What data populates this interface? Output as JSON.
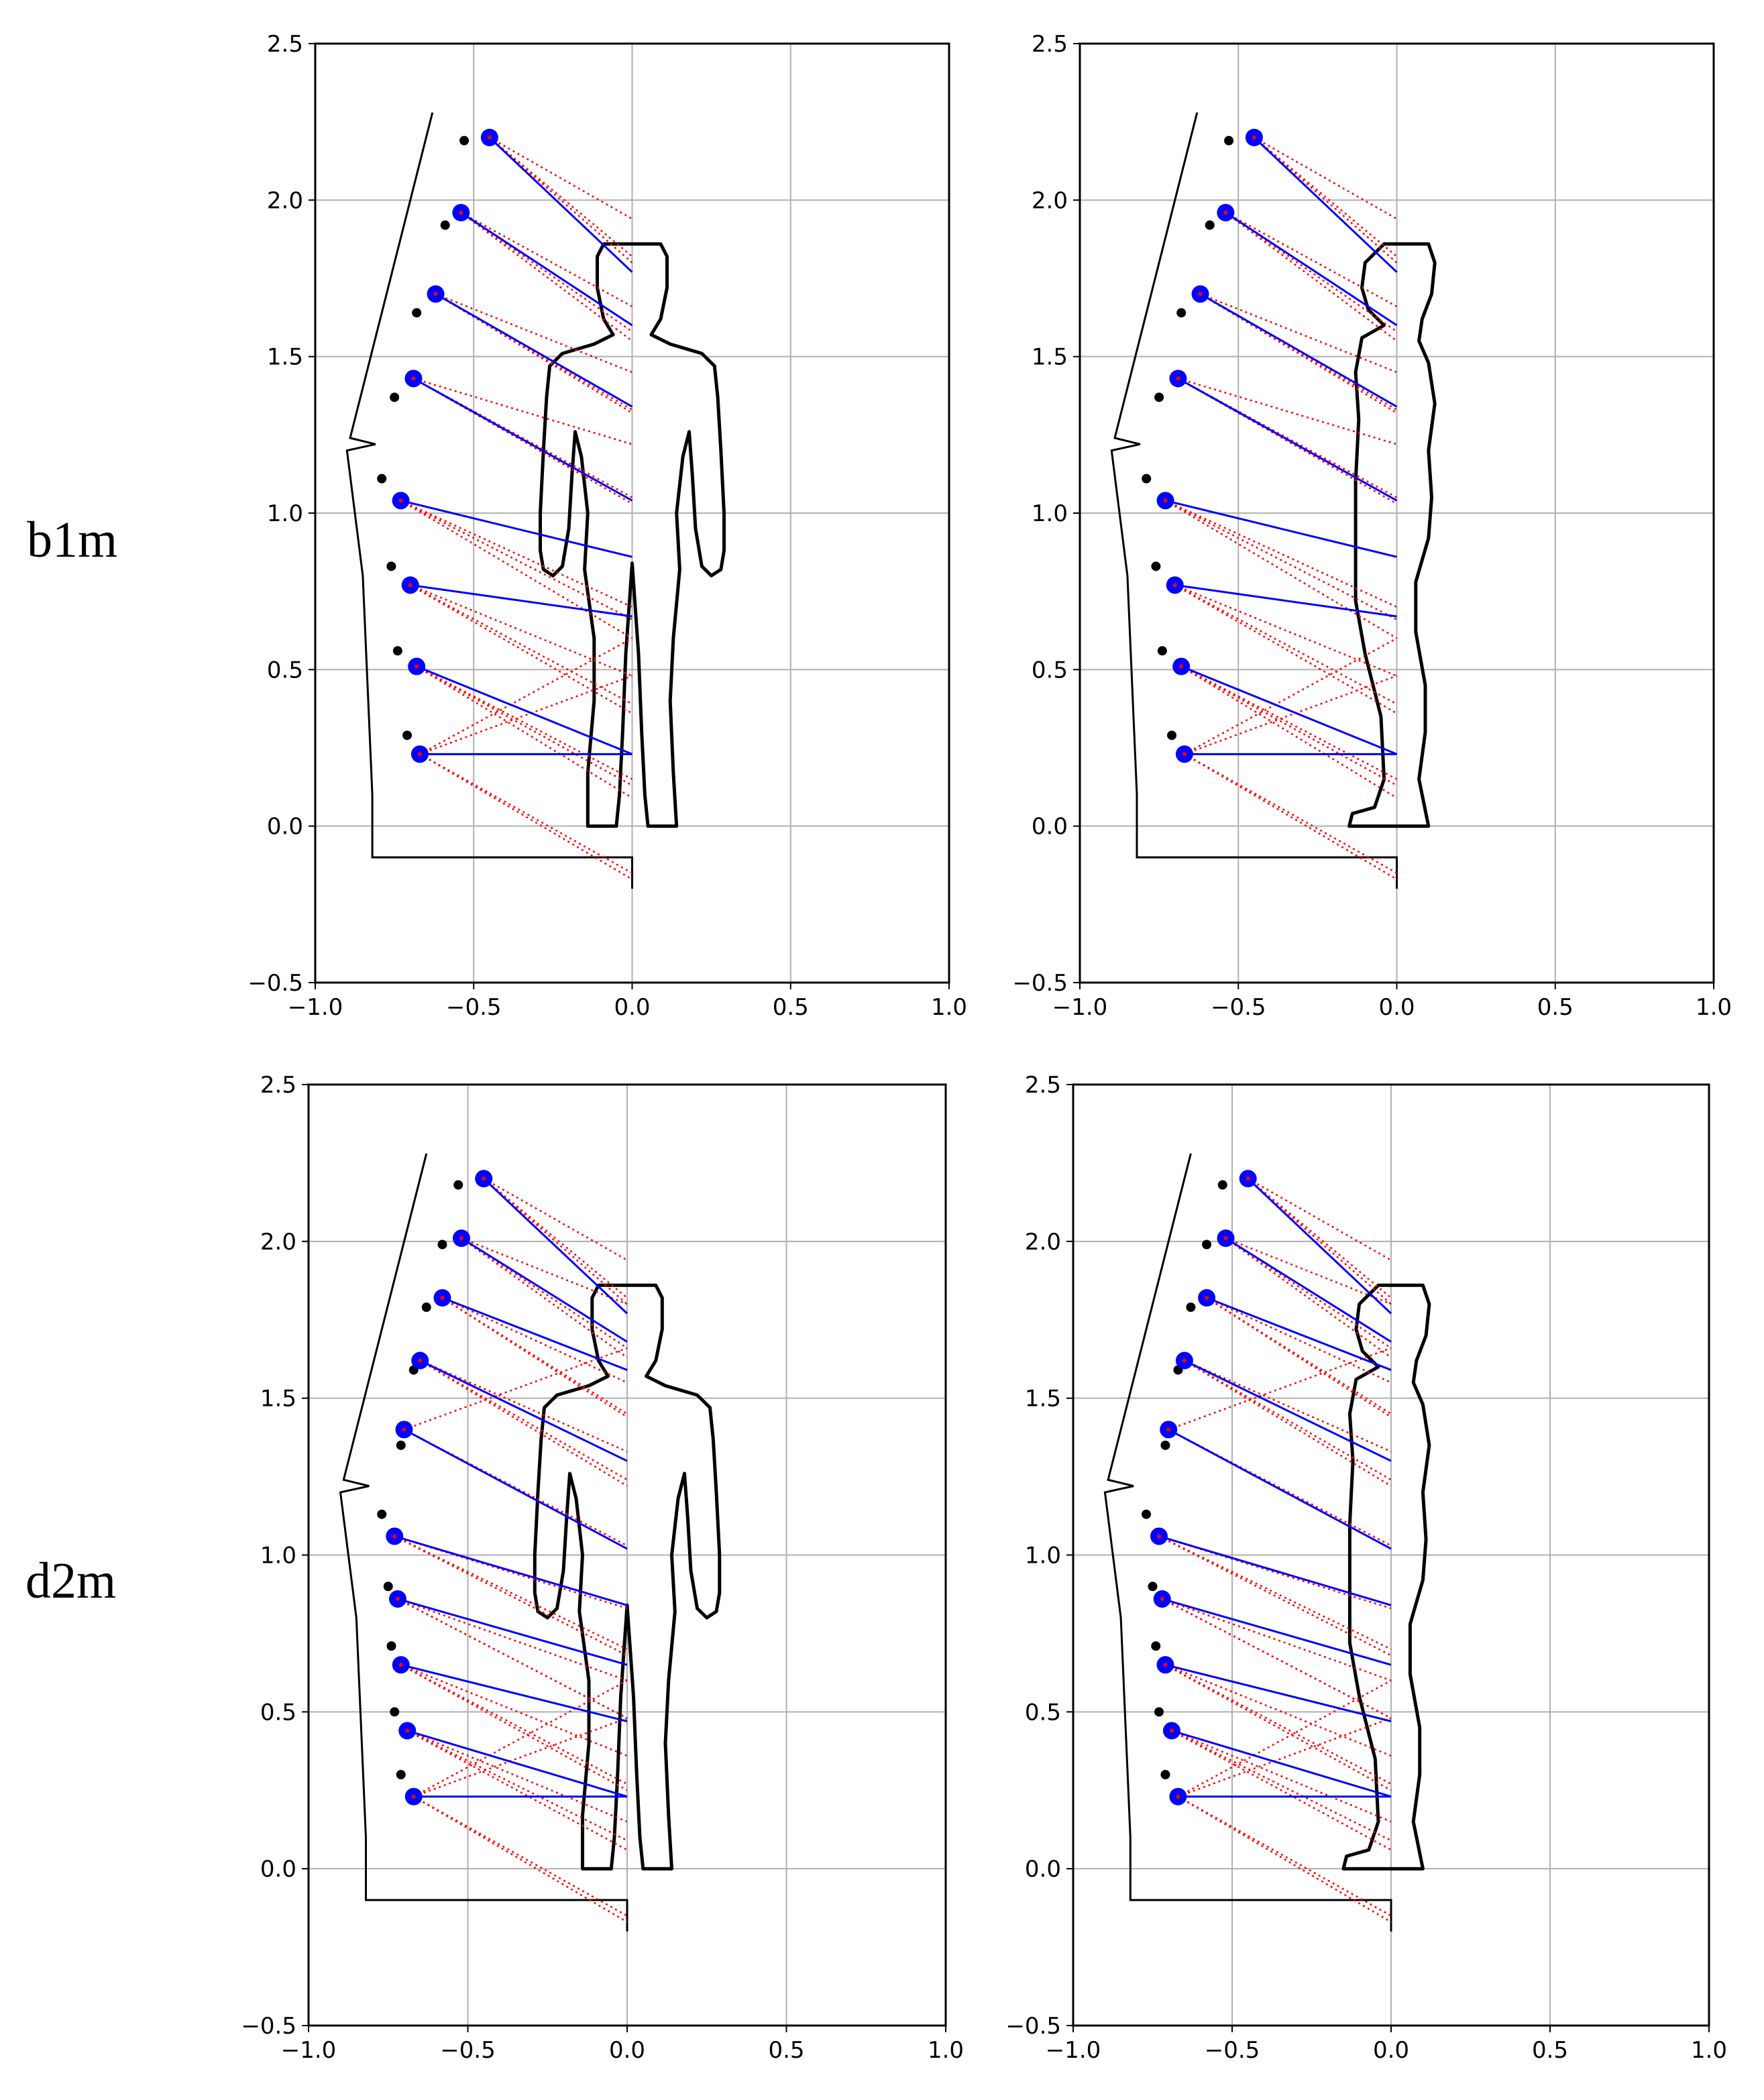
{
  "row_labels": [
    "b1m",
    "d2m"
  ],
  "colors": {
    "sensor_fill": "#0000ff",
    "sensor_center": "#ff0000",
    "los_line": "#0000ff",
    "ray_line": "#ff0000",
    "dot": "#000000",
    "grid": "#b0b0b0",
    "outline": "#000000"
  },
  "chart_data": [
    {
      "type": "scatter",
      "row_label": "b1m",
      "view": "front",
      "xlim": [
        -1.0,
        1.0
      ],
      "ylim": [
        -0.5,
        2.5
      ],
      "xticks": [
        "−1.0",
        "−0.5",
        "0.0",
        "0.5",
        "1.0"
      ],
      "yticks": [
        "−0.5",
        "0.0",
        "0.5",
        "1.0",
        "1.5",
        "2.0",
        "2.5"
      ],
      "grid": true,
      "sensors": [
        [
          -0.45,
          2.2
        ],
        [
          -0.54,
          1.96
        ],
        [
          -0.62,
          1.7
        ],
        [
          -0.69,
          1.43
        ],
        [
          -0.73,
          1.04
        ],
        [
          -0.7,
          0.77
        ],
        [
          -0.68,
          0.51
        ],
        [
          -0.67,
          0.23
        ]
      ],
      "targets_y": [
        1.77,
        1.6,
        1.34,
        1.04,
        0.86,
        0.67,
        0.23
      ],
      "dots": [
        [
          -0.53,
          2.19
        ],
        [
          -0.59,
          1.92
        ],
        [
          -0.68,
          1.64
        ],
        [
          -0.75,
          1.37
        ],
        [
          -0.79,
          1.11
        ],
        [
          -0.76,
          0.83
        ],
        [
          -0.74,
          0.56
        ],
        [
          -0.71,
          0.29
        ]
      ]
    },
    {
      "type": "scatter",
      "row_label": "b1m",
      "view": "side",
      "xlim": [
        -1.0,
        1.0
      ],
      "ylim": [
        -0.5,
        2.5
      ],
      "xticks": [
        "−1.0",
        "−0.5",
        "0.0",
        "0.5",
        "1.0"
      ],
      "yticks": [
        "−0.5",
        "0.0",
        "0.5",
        "1.0",
        "1.5",
        "2.0",
        "2.5"
      ],
      "grid": true,
      "sensors": [
        [
          -0.45,
          2.2
        ],
        [
          -0.54,
          1.96
        ],
        [
          -0.62,
          1.7
        ],
        [
          -0.69,
          1.43
        ],
        [
          -0.73,
          1.04
        ],
        [
          -0.7,
          0.77
        ],
        [
          -0.68,
          0.51
        ],
        [
          -0.67,
          0.23
        ]
      ],
      "targets_y": [
        1.77,
        1.6,
        1.34,
        1.04,
        0.86,
        0.67,
        0.23
      ],
      "dots": [
        [
          -0.53,
          2.19
        ],
        [
          -0.59,
          1.92
        ],
        [
          -0.68,
          1.64
        ],
        [
          -0.75,
          1.37
        ],
        [
          -0.79,
          1.11
        ],
        [
          -0.76,
          0.83
        ],
        [
          -0.74,
          0.56
        ],
        [
          -0.71,
          0.29
        ]
      ]
    },
    {
      "type": "scatter",
      "row_label": "d2m",
      "view": "front",
      "xlim": [
        -1.0,
        1.0
      ],
      "ylim": [
        -0.5,
        2.5
      ],
      "xticks": [
        "−1.0",
        "−0.5",
        "0.0",
        "0.5",
        "1.0"
      ],
      "yticks": [
        "−0.5",
        "0.0",
        "0.5",
        "1.0",
        "1.5",
        "2.0",
        "2.5"
      ],
      "grid": true,
      "sensors": [
        [
          -0.45,
          2.2
        ],
        [
          -0.52,
          2.01
        ],
        [
          -0.58,
          1.82
        ],
        [
          -0.65,
          1.62
        ],
        [
          -0.7,
          1.4
        ],
        [
          -0.73,
          1.06
        ],
        [
          -0.72,
          0.86
        ],
        [
          -0.71,
          0.65
        ],
        [
          -0.69,
          0.44
        ],
        [
          -0.67,
          0.23
        ]
      ],
      "targets_y": [
        1.77,
        1.68,
        1.59,
        1.3,
        1.02,
        0.84,
        0.65,
        0.47,
        0.23
      ],
      "dots": [
        [
          -0.53,
          2.18
        ],
        [
          -0.58,
          1.99
        ],
        [
          -0.63,
          1.79
        ],
        [
          -0.67,
          1.59
        ],
        [
          -0.71,
          1.35
        ],
        [
          -0.77,
          1.13
        ],
        [
          -0.75,
          0.9
        ],
        [
          -0.74,
          0.71
        ],
        [
          -0.73,
          0.5
        ],
        [
          -0.71,
          0.3
        ]
      ]
    },
    {
      "type": "scatter",
      "row_label": "d2m",
      "view": "side",
      "xlim": [
        -1.0,
        1.0
      ],
      "ylim": [
        -0.5,
        2.5
      ],
      "xticks": [
        "−1.0",
        "−0.5",
        "0.0",
        "0.5",
        "1.0"
      ],
      "yticks": [
        "−0.5",
        "0.0",
        "0.5",
        "1.0",
        "1.5",
        "2.0",
        "2.5"
      ],
      "grid": true,
      "sensors": [
        [
          -0.45,
          2.2
        ],
        [
          -0.52,
          2.01
        ],
        [
          -0.58,
          1.82
        ],
        [
          -0.65,
          1.62
        ],
        [
          -0.7,
          1.4
        ],
        [
          -0.73,
          1.06
        ],
        [
          -0.72,
          0.86
        ],
        [
          -0.71,
          0.65
        ],
        [
          -0.69,
          0.44
        ],
        [
          -0.67,
          0.23
        ]
      ],
      "targets_y": [
        1.77,
        1.68,
        1.59,
        1.3,
        1.02,
        0.84,
        0.65,
        0.47,
        0.23
      ],
      "dots": [
        [
          -0.53,
          2.18
        ],
        [
          -0.58,
          1.99
        ],
        [
          -0.63,
          1.79
        ],
        [
          -0.67,
          1.59
        ],
        [
          -0.71,
          1.35
        ],
        [
          -0.77,
          1.13
        ],
        [
          -0.75,
          0.9
        ],
        [
          -0.74,
          0.71
        ],
        [
          -0.73,
          0.5
        ],
        [
          -0.71,
          0.3
        ]
      ]
    }
  ]
}
